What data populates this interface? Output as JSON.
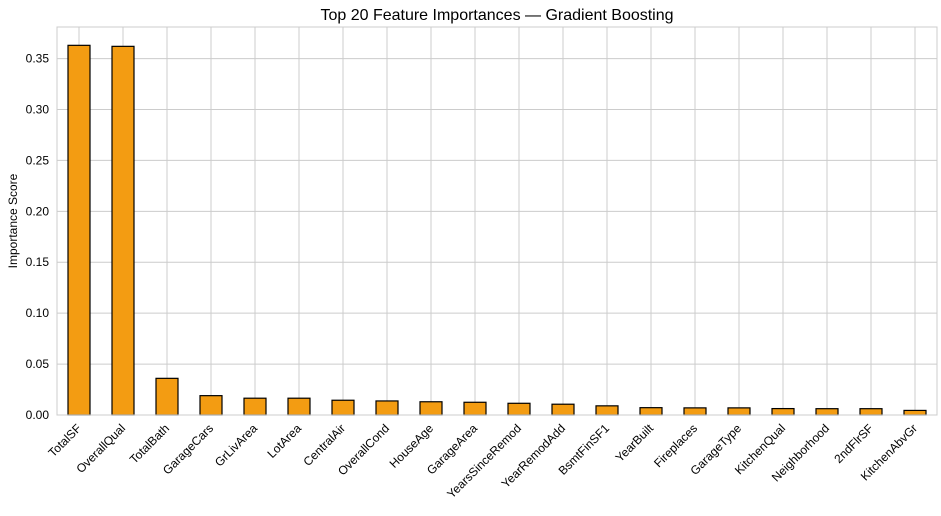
{
  "chart_data": {
    "type": "bar",
    "title": "Top 20 Feature Importances — Gradient Boosting",
    "xlabel": "",
    "ylabel": "Importance Score",
    "ylim": [
      0,
      0.381
    ],
    "yticks": [
      "0.00",
      "0.05",
      "0.10",
      "0.15",
      "0.20",
      "0.25",
      "0.30",
      "0.35"
    ],
    "grid": true,
    "bar_color": "#f39c12",
    "edge_color": "#000000",
    "categories": [
      "TotalSF",
      "OverallQual",
      "TotalBath",
      "GarageCars",
      "GrLivArea",
      "LotArea",
      "CentralAir",
      "OverallCond",
      "HouseAge",
      "GarageArea",
      "YearsSinceRemod",
      "YearRemodAdd",
      "BsmtFinSF1",
      "YearBuilt",
      "Fireplaces",
      "GarageType",
      "KitchenQual",
      "Neighborhood",
      "2ndFlrSF",
      "KitchenAbvGr"
    ],
    "values": [
      0.363,
      0.362,
      0.036,
      0.019,
      0.0165,
      0.0165,
      0.0145,
      0.0138,
      0.013,
      0.0125,
      0.0115,
      0.0106,
      0.009,
      0.0072,
      0.007,
      0.007,
      0.0063,
      0.0062,
      0.0062,
      0.0045
    ]
  }
}
